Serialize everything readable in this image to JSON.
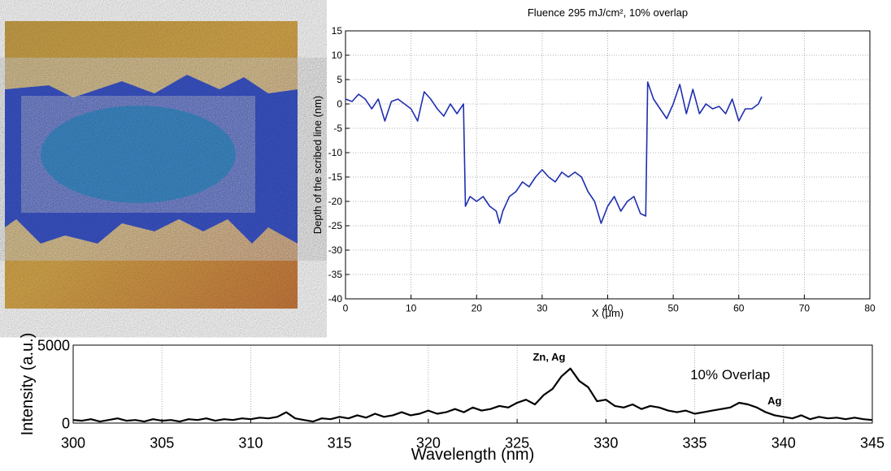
{
  "chart_data": [
    {
      "type": "line",
      "title": "Fluence 295 mJ/cm², 10% overlap",
      "xlabel": "X (μm)",
      "ylabel": "Depth of the scribed line (nm)",
      "xlim": [
        0,
        80
      ],
      "xticks": [
        0,
        10,
        20,
        30,
        40,
        50,
        60,
        70,
        80
      ],
      "ylim": [
        -40,
        15
      ],
      "yticks": [
        -40,
        -35,
        -30,
        -25,
        -20,
        -15,
        -10,
        -5,
        0,
        5,
        10,
        15
      ],
      "grid": "both",
      "x": [
        0,
        1,
        2,
        3,
        4,
        5,
        6,
        7,
        8,
        9,
        10,
        11,
        12,
        13,
        14,
        15,
        16,
        17,
        18,
        18.3,
        19,
        20,
        21,
        22,
        23,
        23.5,
        24,
        25,
        26,
        27,
        28,
        29,
        30,
        31,
        32,
        33,
        34,
        35,
        36,
        37,
        38,
        39,
        40,
        41,
        42,
        43,
        44,
        45,
        45.8,
        46.1,
        47,
        48,
        49,
        50,
        51,
        52,
        53,
        54,
        55,
        56,
        57,
        58,
        59,
        60,
        61,
        62,
        63,
        63.5
      ],
      "series": [
        {
          "color": "#1f2fb0",
          "values": [
            1,
            0.5,
            2,
            1,
            -1,
            1,
            -3.5,
            0.5,
            1,
            0,
            -1,
            -3.5,
            2.5,
            1,
            -1,
            -2.5,
            0,
            -2,
            0,
            -21,
            -19,
            -20,
            -19,
            -21,
            -22,
            -24.5,
            -22,
            -19,
            -18,
            -16,
            -17,
            -15,
            -13.5,
            -15,
            -16,
            -14,
            -15,
            -14,
            -15,
            -18,
            -20,
            -24.5,
            -21,
            -19,
            -22,
            -20,
            -19,
            -22.5,
            -23,
            4.5,
            1,
            -1,
            -3,
            0,
            4,
            -2,
            3,
            -2,
            0,
            -1,
            -0.5,
            -2,
            1,
            -3.5,
            -1,
            -1,
            0,
            1.5
          ]
        }
      ]
    },
    {
      "type": "line",
      "xlabel": "Wavelength (nm)",
      "ylabel": "Intensity (a.u.)",
      "xlim": [
        300,
        345
      ],
      "xticks": [
        300,
        305,
        310,
        315,
        320,
        325,
        330,
        335,
        340,
        345
      ],
      "ylim": [
        0,
        5000
      ],
      "yticks": [
        0,
        5000
      ],
      "grid": "x",
      "annotations": [
        "Zn, Ag",
        "10% Overlap",
        "Ag"
      ],
      "x": [
        300,
        300.5,
        301,
        301.5,
        302,
        302.5,
        303,
        303.5,
        304,
        304.5,
        305,
        305.5,
        306,
        306.5,
        307,
        307.5,
        308,
        308.5,
        309,
        309.5,
        310,
        310.5,
        311,
        311.5,
        312,
        312.5,
        313,
        313.5,
        314,
        314.5,
        315,
        315.5,
        316,
        316.5,
        317,
        317.5,
        318,
        318.5,
        319,
        319.5,
        320,
        320.5,
        321,
        321.5,
        322,
        322.5,
        323,
        323.5,
        324,
        324.5,
        325,
        325.5,
        326,
        326.5,
        327,
        327.5,
        328,
        328.5,
        329,
        329.5,
        330,
        330.5,
        331,
        331.5,
        332,
        332.5,
        333,
        333.5,
        334,
        334.5,
        335,
        335.5,
        336,
        336.5,
        337,
        337.5,
        338,
        338.5,
        339,
        339.5,
        340,
        340.5,
        341,
        341.5,
        342,
        342.5,
        343,
        343.5,
        344,
        344.5,
        345
      ],
      "series": [
        {
          "color": "#000000",
          "values": [
            200,
            150,
            250,
            100,
            200,
            300,
            150,
            200,
            100,
            250,
            150,
            200,
            100,
            250,
            200,
            300,
            150,
            250,
            200,
            300,
            250,
            350,
            300,
            400,
            700,
            300,
            200,
            100,
            300,
            250,
            400,
            300,
            500,
            350,
            600,
            400,
            500,
            700,
            500,
            600,
            800,
            600,
            700,
            900,
            700,
            1000,
            800,
            900,
            1100,
            1000,
            1300,
            1500,
            1200,
            1800,
            2200,
            3000,
            3500,
            2700,
            2300,
            1400,
            1500,
            1100,
            1000,
            1200,
            900,
            1100,
            1000,
            800,
            700,
            800,
            600,
            700,
            800,
            900,
            1000,
            1300,
            1200,
            1000,
            700,
            500,
            400,
            300,
            500,
            250,
            400,
            300,
            350,
            250,
            350,
            250,
            200
          ]
        }
      ]
    }
  ]
}
